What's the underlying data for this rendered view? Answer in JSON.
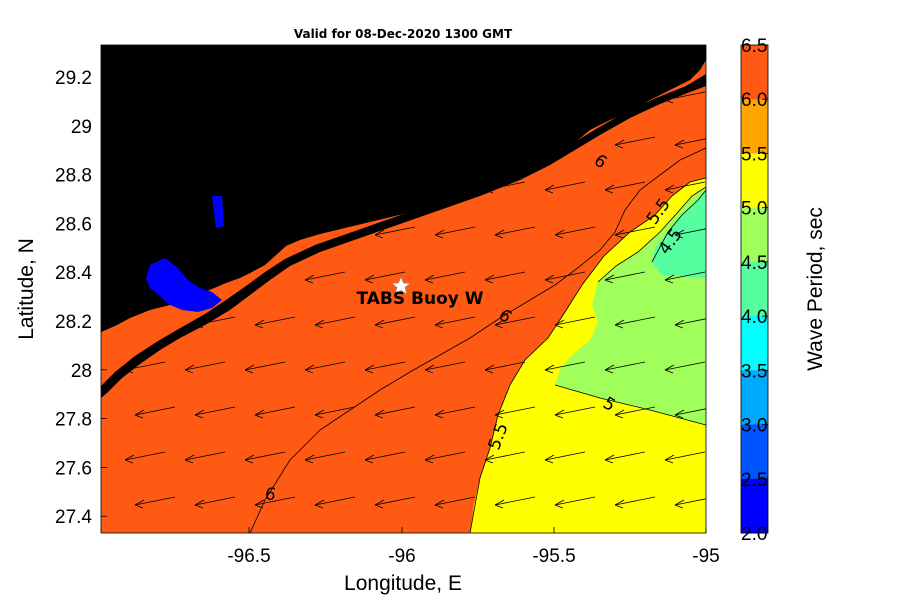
{
  "title": "Valid for 08-Dec-2020 1300 GMT",
  "xlabel": "Longitude, E",
  "ylabel": "Latitude, N",
  "x_ticks": [
    "-96.5",
    "-96",
    "-95.5",
    "-95"
  ],
  "y_ticks": [
    "29.2",
    "29",
    "28.8",
    "28.6",
    "28.4",
    "28.2",
    "28",
    "27.8",
    "27.6",
    "27.4"
  ],
  "colorbar": {
    "label": "Wave Period, sec",
    "ticks": [
      "6.5",
      "6.0",
      "5.5",
      "5.0",
      "4.5",
      "4.0",
      "3.5",
      "3.0",
      "2.5",
      "2.0"
    ],
    "colors": [
      "#ff5a14",
      "#ffa500",
      "#ffff00",
      "#a0ff5a",
      "#55ffa0",
      "#00ffff",
      "#00aaff",
      "#0055ff",
      "#0000ff"
    ]
  },
  "station": {
    "name": "TABS Buoy W",
    "lon": -96.0,
    "lat": 28.35
  },
  "contour_labels": [
    "6",
    "5.5",
    "4.5",
    "6",
    "5",
    "5.5",
    "6"
  ],
  "colors": {
    "land": "#000000",
    "period_6": "#ff5a14",
    "period_5_5": "#ffff00",
    "period_5": "#a0ff5a",
    "period_4_5": "#55ffa0",
    "bay_blue": "#0000ff"
  }
}
